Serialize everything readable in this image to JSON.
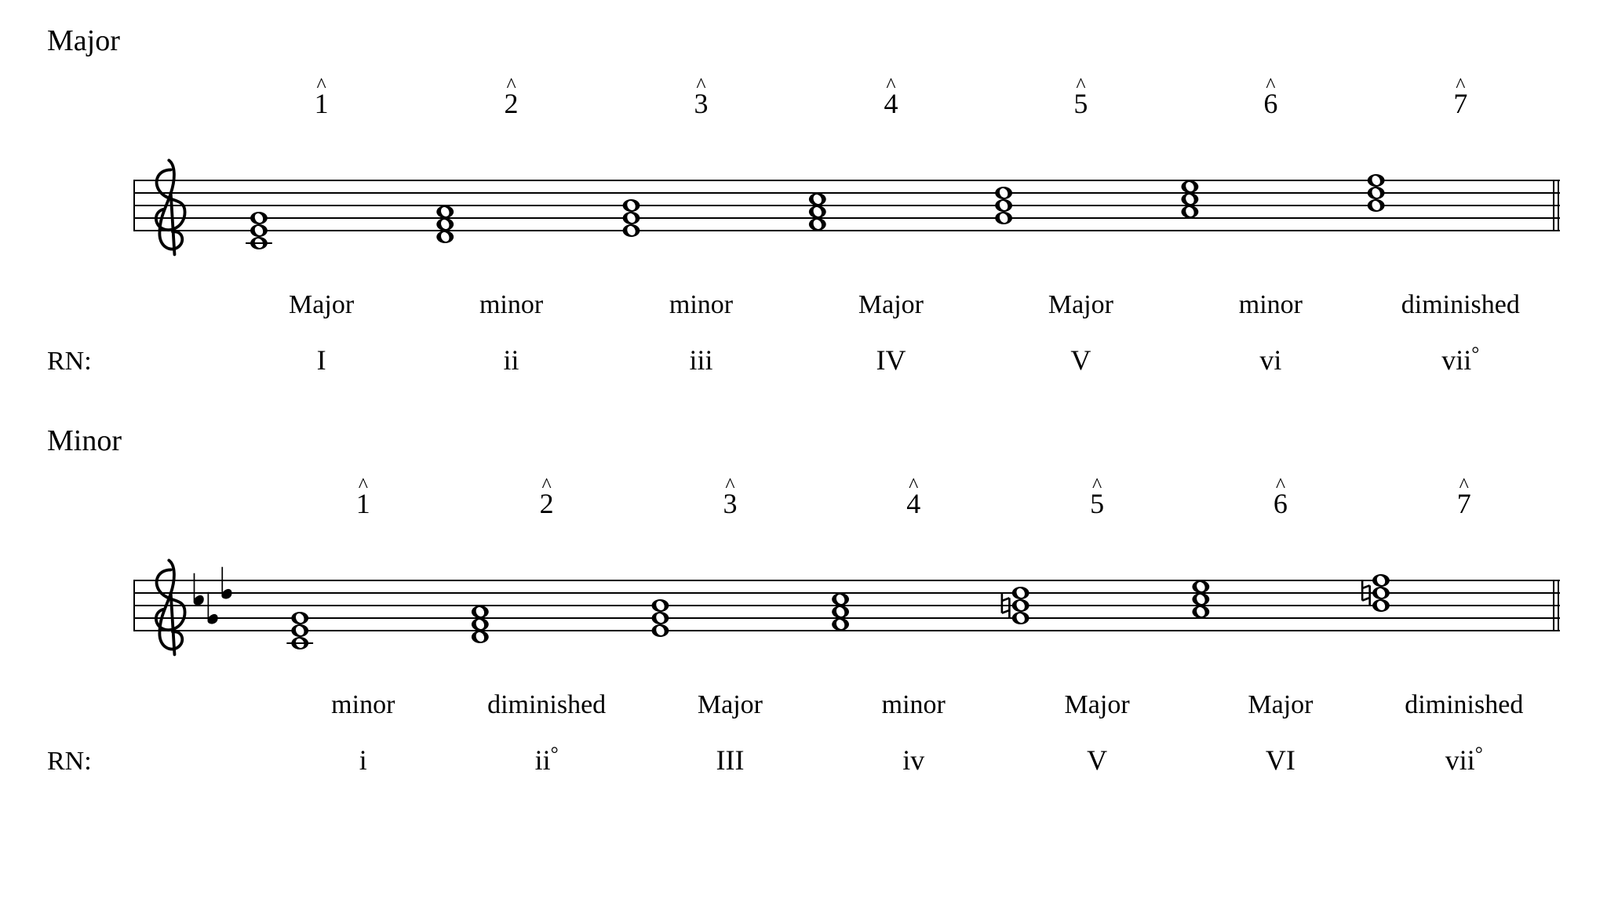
{
  "page": {
    "bg": "#ffffff",
    "text_color": "#000000",
    "font_family": "Times New Roman",
    "label_fontsize": 34,
    "title_fontsize": 38,
    "degree_fontsize": 36
  },
  "staff": {
    "line_color": "#000000",
    "line_weight": 2,
    "line_gap": 16,
    "clef": "treble",
    "barline_weight": 2,
    "staff_count_lines": 5
  },
  "sections": [
    {
      "title": "Major",
      "key_sig": {
        "flats": 0,
        "sharps": 0
      },
      "rn_prefix": "RN:",
      "chords": [
        {
          "degree": "1",
          "quality": "Major",
          "rn": "I",
          "rn_suffix": "",
          "root_step": 0,
          "accidental": null
        },
        {
          "degree": "2",
          "quality": "minor",
          "rn": "ii",
          "rn_suffix": "",
          "root_step": 1,
          "accidental": null
        },
        {
          "degree": "3",
          "quality": "minor",
          "rn": "iii",
          "rn_suffix": "",
          "root_step": 2,
          "accidental": null
        },
        {
          "degree": "4",
          "quality": "Major",
          "rn": "IV",
          "rn_suffix": "",
          "root_step": 3,
          "accidental": null
        },
        {
          "degree": "5",
          "quality": "Major",
          "rn": "V",
          "rn_suffix": "",
          "root_step": 4,
          "accidental": null
        },
        {
          "degree": "6",
          "quality": "minor",
          "rn": "vi",
          "rn_suffix": "",
          "root_step": 5,
          "accidental": null
        },
        {
          "degree": "7",
          "quality": "diminished",
          "rn": "vii",
          "rn_suffix": "°",
          "root_step": 6,
          "accidental": null
        }
      ]
    },
    {
      "title": "Minor",
      "key_sig": {
        "flats": 3,
        "sharps": 0
      },
      "rn_prefix": "RN:",
      "chords": [
        {
          "degree": "1",
          "quality": "minor",
          "rn": "i",
          "rn_suffix": "",
          "root_step": 0,
          "accidental": null
        },
        {
          "degree": "2",
          "quality": "diminished",
          "rn": "ii",
          "rn_suffix": "°",
          "root_step": 1,
          "accidental": null
        },
        {
          "degree": "3",
          "quality": "Major",
          "rn": "III",
          "rn_suffix": "",
          "root_step": 2,
          "accidental": null
        },
        {
          "degree": "4",
          "quality": "minor",
          "rn": "iv",
          "rn_suffix": "",
          "root_step": 3,
          "accidental": null
        },
        {
          "degree": "5",
          "quality": "Major",
          "rn": "V",
          "rn_suffix": "",
          "root_step": 4,
          "accidental": "natural"
        },
        {
          "degree": "6",
          "quality": "Major",
          "rn": "VI",
          "rn_suffix": "",
          "root_step": 5,
          "accidental": null
        },
        {
          "degree": "7",
          "quality": "diminished",
          "rn": "vii",
          "rn_suffix": "°",
          "root_step": 6,
          "accidental": "natural"
        }
      ]
    }
  ],
  "notation": {
    "note_color": "#000000",
    "notehead_rx": 11,
    "notehead_ry": 8,
    "chord_vertical_stack_steps": [
      0,
      2,
      4
    ],
    "ledger_line_len": 34,
    "ledger_line_weight": 2,
    "accidental_dx": -24,
    "flat_positions_treble": [
      2,
      5,
      1
    ],
    "staff_base_step_for_root0": -2
  }
}
